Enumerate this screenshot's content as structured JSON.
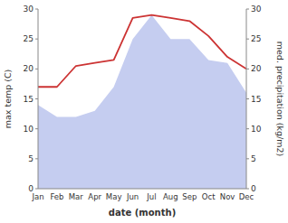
{
  "chart_data": {
    "type": "line",
    "x_label": "date (month)",
    "y_label": "max temp (C)",
    "y2_label": "med. precipitation (kg/m2)",
    "categories": [
      "Jan",
      "Feb",
      "Mar",
      "Apr",
      "May",
      "Jun",
      "Jul",
      "Aug",
      "Sep",
      "Oct",
      "Nov",
      "Dec"
    ],
    "series": [
      {
        "type": "area",
        "axis": "y2",
        "color": "#c5cdf0",
        "values": [
          14,
          12,
          12,
          13,
          17,
          25,
          29,
          25,
          25,
          21.5,
          21,
          16
        ]
      },
      {
        "type": "line",
        "axis": "y",
        "color": "#cc3333",
        "values": [
          17,
          17,
          20.5,
          21,
          21.5,
          28.5,
          29,
          28.5,
          28,
          25.5,
          22,
          20
        ]
      }
    ],
    "ylim": [
      0,
      30
    ],
    "yticks": [
      0,
      5,
      10,
      15,
      20,
      25,
      30
    ],
    "y2lim": [
      0,
      30
    ],
    "y2ticks": [
      0,
      5,
      10,
      15,
      20,
      25,
      30
    ],
    "grid": false
  }
}
